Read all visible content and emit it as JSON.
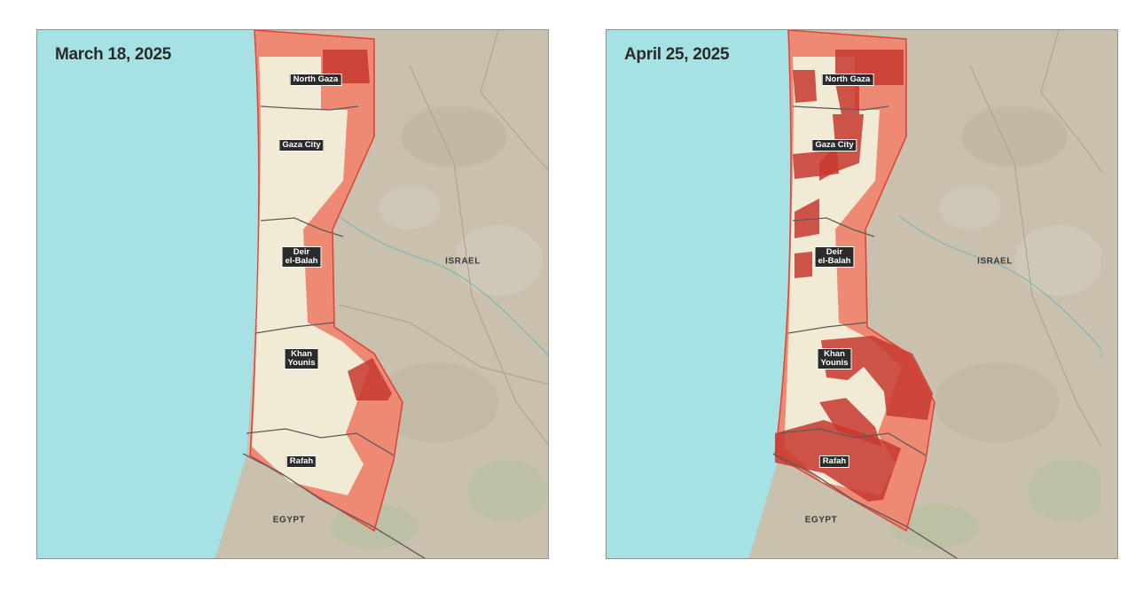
{
  "maps": [
    {
      "date": "March 18, 2025",
      "governorates": [
        {
          "id": "north-gaza",
          "label": "North Gaza"
        },
        {
          "id": "gaza-city",
          "label": "Gaza City"
        },
        {
          "id": "deir-el-balah",
          "label": "Deir\nel-Balah"
        },
        {
          "id": "khan-younis",
          "label": "Khan\nYounis"
        },
        {
          "id": "rafah",
          "label": "Rafah"
        }
      ],
      "countries": {
        "israel": "ISRAEL",
        "egypt": "EGYPT"
      }
    },
    {
      "date": "April 25, 2025",
      "governorates": [
        {
          "id": "north-gaza",
          "label": "North Gaza"
        },
        {
          "id": "gaza-city",
          "label": "Gaza City"
        },
        {
          "id": "deir-el-balah",
          "label": "Deir\nel-Balah"
        },
        {
          "id": "khan-younis",
          "label": "Khan\nYounis"
        },
        {
          "id": "rafah",
          "label": "Rafah"
        }
      ],
      "countries": {
        "israel": "ISRAEL",
        "egypt": "EGYPT"
      }
    }
  ],
  "colors": {
    "sea": "#a6e1e4",
    "land": "#c9c0ad",
    "urban": "#f1ebd6",
    "buffer_zone": "#ee8a73",
    "buffer_border": "#e0433a",
    "evacuation_zone": "#c7382f",
    "borders": "#5a5a5a"
  }
}
